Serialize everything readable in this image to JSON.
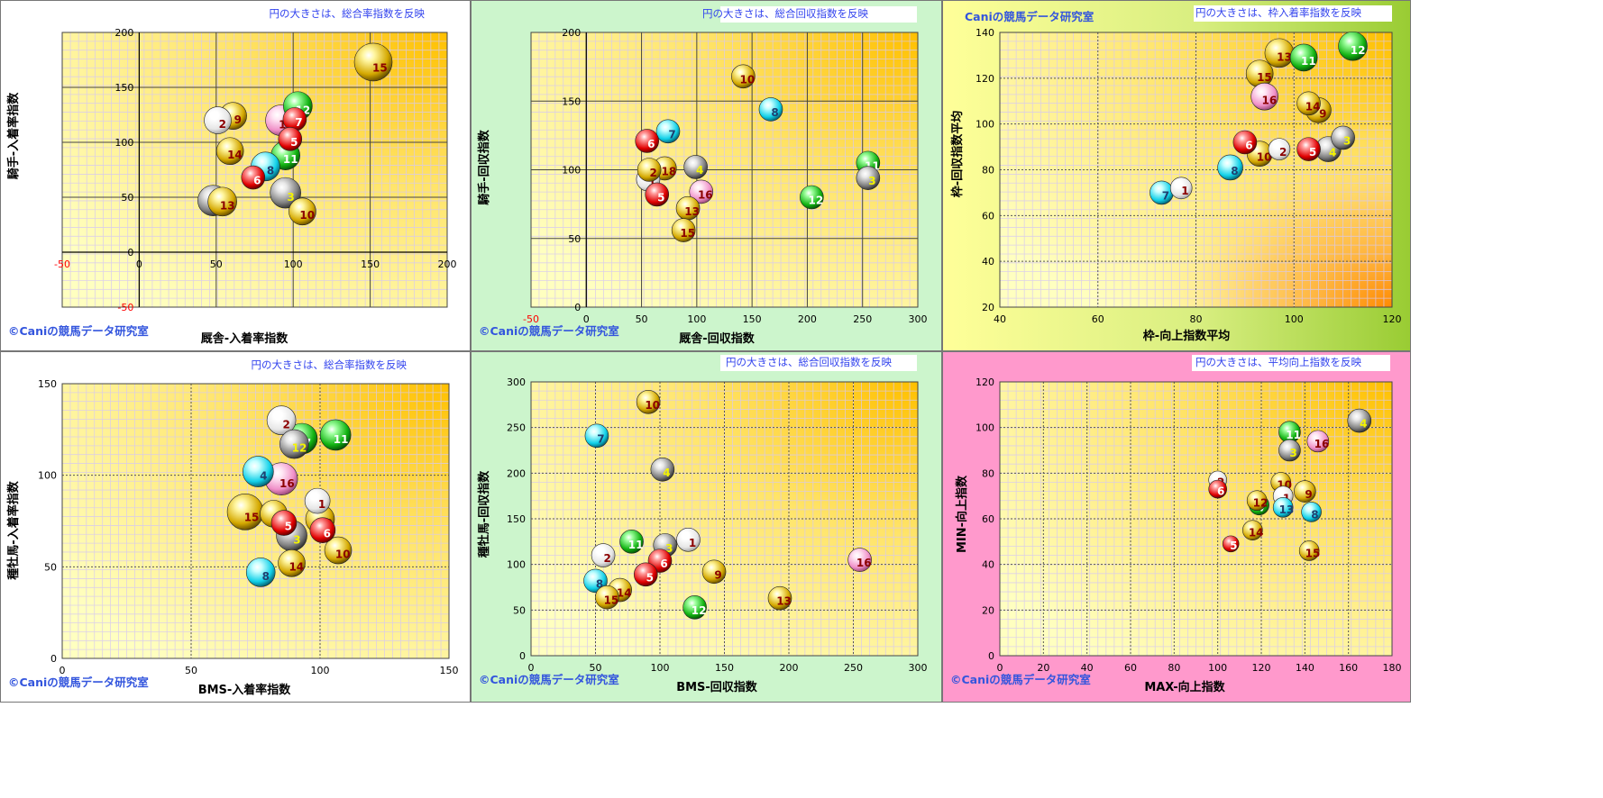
{
  "copyright": "©Caniの競馬データ研究室",
  "watermark": "Caniの競馬データ研究室",
  "chart_data": [
    {
      "type": "scatter",
      "note": "円の大きさは、総合率指数を反映",
      "xlabel": "厩舎-入着率指数",
      "ylabel": "騎手-入着率指数",
      "xlim": [
        -50,
        200
      ],
      "ylim": [
        -50,
        200
      ],
      "xticks": [
        -50,
        0,
        50,
        100,
        150,
        200
      ],
      "yticks": [
        -50,
        0,
        50,
        100,
        150,
        200
      ],
      "neg_red": true,
      "points": [
        {
          "label": "15",
          "x": 152,
          "y": 173,
          "color": "yellow",
          "r": 21
        },
        {
          "label": "12",
          "x": 103,
          "y": 133,
          "color": "green",
          "r": 16
        },
        {
          "label": "9",
          "x": 61,
          "y": 124,
          "color": "yellow",
          "r": 15
        },
        {
          "label": "2",
          "x": 51,
          "y": 120,
          "color": "white",
          "r": 15
        },
        {
          "label": "16",
          "x": 92,
          "y": 120,
          "color": "pink",
          "r": 17
        },
        {
          "label": "7",
          "x": 101,
          "y": 121,
          "color": "red",
          "r": 13
        },
        {
          "label": "5",
          "x": 98,
          "y": 103,
          "color": "red",
          "r": 13
        },
        {
          "label": "14",
          "x": 59,
          "y": 92,
          "color": "yellow",
          "r": 15
        },
        {
          "label": "11",
          "x": 95,
          "y": 88,
          "color": "green",
          "r": 16
        },
        {
          "label": "8",
          "x": 82,
          "y": 78,
          "color": "cyan",
          "r": 16
        },
        {
          "label": "6",
          "x": 74,
          "y": 68,
          "color": "red",
          "r": 13
        },
        {
          "label": "3",
          "x": 95,
          "y": 54,
          "color": "gray",
          "r": 17
        },
        {
          "label": "1",
          "x": 48,
          "y": 47,
          "color": "gray",
          "r": 17
        },
        {
          "label": "13",
          "x": 54,
          "y": 46,
          "color": "yellow",
          "r": 16
        },
        {
          "label": "10",
          "x": 106,
          "y": 37,
          "color": "yellow",
          "r": 15
        }
      ]
    },
    {
      "type": "scatter",
      "note": "円の大きさは、総合回収指数を反映",
      "xlabel": "厩舎-回収指数",
      "ylabel": "騎手-回収指数",
      "xlim": [
        -50,
        300
      ],
      "ylim": [
        0,
        200
      ],
      "xticks": [
        -50,
        0,
        50,
        100,
        150,
        200,
        250,
        300
      ],
      "yticks": [
        0,
        50,
        100,
        150,
        200
      ],
      "neg_red": true,
      "points": [
        {
          "label": "10",
          "x": 142,
          "y": 168,
          "color": "yellow",
          "r": 13
        },
        {
          "label": "8",
          "x": 167,
          "y": 144,
          "color": "cyan",
          "r": 13
        },
        {
          "label": "7",
          "x": 74,
          "y": 128,
          "color": "cyan",
          "r": 13
        },
        {
          "label": "6",
          "x": 55,
          "y": 121,
          "color": "red",
          "r": 13
        },
        {
          "label": "11",
          "x": 255,
          "y": 105,
          "color": "green",
          "r": 13
        },
        {
          "label": "4",
          "x": 99,
          "y": 102,
          "color": "gray",
          "r": 13
        },
        {
          "label": "18",
          "x": 71,
          "y": 101,
          "color": "yellow",
          "r": 13
        },
        {
          "label": "1",
          "x": 56,
          "y": 93,
          "color": "white",
          "r": 13
        },
        {
          "label": "2",
          "x": 57,
          "y": 100,
          "color": "yellow",
          "r": 13
        },
        {
          "label": "3",
          "x": 255,
          "y": 94,
          "color": "gray",
          "r": 13
        },
        {
          "label": "16",
          "x": 104,
          "y": 84,
          "color": "pink",
          "r": 13
        },
        {
          "label": "5",
          "x": 64,
          "y": 82,
          "color": "red",
          "r": 13
        },
        {
          "label": "12",
          "x": 204,
          "y": 80,
          "color": "green",
          "r": 13
        },
        {
          "label": "13",
          "x": 92,
          "y": 72,
          "color": "yellow",
          "r": 13
        },
        {
          "label": "15",
          "x": 88,
          "y": 56,
          "color": "yellow",
          "r": 13
        }
      ]
    },
    {
      "type": "scatter",
      "note": "円の大きさは、枠入着率指数を反映",
      "xlabel": "枠-向上指数平均",
      "ylabel": "枠-回収指数平均",
      "xlim": [
        40,
        120
      ],
      "ylim": [
        20,
        140
      ],
      "xticks": [
        40,
        60,
        80,
        100,
        120
      ],
      "yticks": [
        20,
        40,
        60,
        80,
        100,
        120,
        140
      ],
      "neg_red": false,
      "points": [
        {
          "label": "12",
          "x": 112,
          "y": 134,
          "color": "green",
          "r": 16
        },
        {
          "label": "13",
          "x": 97,
          "y": 131,
          "color": "yellow",
          "r": 16
        },
        {
          "label": "11",
          "x": 102,
          "y": 129,
          "color": "green",
          "r": 15
        },
        {
          "label": "15",
          "x": 93,
          "y": 122,
          "color": "yellow",
          "r": 15
        },
        {
          "label": "16",
          "x": 94,
          "y": 112,
          "color": "pink",
          "r": 15
        },
        {
          "label": "14",
          "x": 103,
          "y": 109,
          "color": "yellow",
          "r": 13
        },
        {
          "label": "9",
          "x": 105,
          "y": 106,
          "color": "yellow",
          "r": 14
        },
        {
          "label": "3",
          "x": 110,
          "y": 94,
          "color": "gray",
          "r": 13
        },
        {
          "label": "6",
          "x": 90,
          "y": 92,
          "color": "red",
          "r": 13
        },
        {
          "label": "2",
          "x": 97,
          "y": 89,
          "color": "white",
          "r": 12
        },
        {
          "label": "5",
          "x": 103,
          "y": 89,
          "color": "red",
          "r": 13
        },
        {
          "label": "4",
          "x": 107,
          "y": 89,
          "color": "gray",
          "r": 14
        },
        {
          "label": "10",
          "x": 93,
          "y": 87,
          "color": "yellow",
          "r": 14
        },
        {
          "label": "8",
          "x": 87,
          "y": 81,
          "color": "cyan",
          "r": 14
        },
        {
          "label": "1",
          "x": 77,
          "y": 72,
          "color": "white",
          "r": 12
        },
        {
          "label": "7",
          "x": 73,
          "y": 70,
          "color": "cyan",
          "r": 13
        }
      ]
    },
    {
      "type": "scatter",
      "note": "円の大きさは、総合率指数を反映",
      "xlabel": "BMS-入着率指数",
      "ylabel": "種牡馬-入着率指数",
      "xlim": [
        0,
        150
      ],
      "ylim": [
        0,
        150
      ],
      "xticks": [
        0,
        50,
        100,
        150
      ],
      "yticks": [
        0,
        50,
        100,
        150
      ],
      "neg_red": false,
      "points": [
        {
          "label": "2",
          "x": 85,
          "y": 130,
          "color": "white",
          "r": 16
        },
        {
          "label": "12",
          "x": 90,
          "y": 117,
          "color": "gray",
          "r": 16
        },
        {
          "label": "7",
          "x": 93,
          "y": 120,
          "color": "green",
          "r": 17
        },
        {
          "label": "11",
          "x": 106,
          "y": 122,
          "color": "green",
          "r": 17
        },
        {
          "label": "4",
          "x": 76,
          "y": 102,
          "color": "cyan",
          "r": 17
        },
        {
          "label": "16",
          "x": 85,
          "y": 98,
          "color": "pink",
          "r": 18
        },
        {
          "label": "1",
          "x": 99,
          "y": 86,
          "color": "white",
          "r": 14
        },
        {
          "label": "15",
          "x": 71,
          "y": 80,
          "color": "yellow",
          "r": 20
        },
        {
          "label": "9",
          "x": 82,
          "y": 79,
          "color": "yellow",
          "r": 15
        },
        {
          "label": "5",
          "x": 86,
          "y": 74,
          "color": "red",
          "r": 14
        },
        {
          "label": "13",
          "x": 100,
          "y": 76,
          "color": "yellow",
          "r": 16
        },
        {
          "label": "6",
          "x": 101,
          "y": 70,
          "color": "red",
          "r": 14
        },
        {
          "label": "3",
          "x": 89,
          "y": 67,
          "color": "gray",
          "r": 17
        },
        {
          "label": "10",
          "x": 107,
          "y": 59,
          "color": "yellow",
          "r": 15
        },
        {
          "label": "14",
          "x": 89,
          "y": 52,
          "color": "yellow",
          "r": 15
        },
        {
          "label": "8",
          "x": 77,
          "y": 47,
          "color": "cyan",
          "r": 16
        }
      ]
    },
    {
      "type": "scatter",
      "note": "円の大きさは、総合回収指数を反映",
      "xlabel": "BMS-回収指数",
      "ylabel": "種牡馬-回収指数",
      "xlim": [
        0,
        300
      ],
      "ylim": [
        0,
        300
      ],
      "xticks": [
        0,
        50,
        100,
        150,
        200,
        250,
        300
      ],
      "yticks": [
        0,
        50,
        100,
        150,
        200,
        250,
        300
      ],
      "neg_red": false,
      "points": [
        {
          "label": "10",
          "x": 91,
          "y": 278,
          "color": "yellow",
          "r": 13
        },
        {
          "label": "7",
          "x": 51,
          "y": 241,
          "color": "cyan",
          "r": 13
        },
        {
          "label": "4",
          "x": 102,
          "y": 204,
          "color": "gray",
          "r": 13
        },
        {
          "label": "1",
          "x": 122,
          "y": 127,
          "color": "white",
          "r": 13
        },
        {
          "label": "11",
          "x": 78,
          "y": 125,
          "color": "green",
          "r": 13
        },
        {
          "label": "3",
          "x": 104,
          "y": 121,
          "color": "gray",
          "r": 13
        },
        {
          "label": "2",
          "x": 56,
          "y": 110,
          "color": "white",
          "r": 13
        },
        {
          "label": "6",
          "x": 100,
          "y": 104,
          "color": "red",
          "r": 13
        },
        {
          "label": "16",
          "x": 255,
          "y": 105,
          "color": "pink",
          "r": 13
        },
        {
          "label": "9",
          "x": 142,
          "y": 92,
          "color": "yellow",
          "r": 13
        },
        {
          "label": "5",
          "x": 89,
          "y": 89,
          "color": "red",
          "r": 13
        },
        {
          "label": "8",
          "x": 50,
          "y": 82,
          "color": "cyan",
          "r": 13
        },
        {
          "label": "14",
          "x": 69,
          "y": 72,
          "color": "yellow",
          "r": 13
        },
        {
          "label": "15",
          "x": 59,
          "y": 64,
          "color": "yellow",
          "r": 13
        },
        {
          "label": "13",
          "x": 193,
          "y": 63,
          "color": "yellow",
          "r": 13
        },
        {
          "label": "12",
          "x": 127,
          "y": 53,
          "color": "green",
          "r": 13
        }
      ]
    },
    {
      "type": "scatter",
      "note": "円の大きさは、平均向上指数を反映",
      "xlabel": "MAX-向上指数",
      "ylabel": "MIN-向上指数",
      "xlim": [
        0,
        180
      ],
      "ylim": [
        0,
        120
      ],
      "xticks": [
        0,
        20,
        40,
        60,
        80,
        100,
        120,
        140,
        160,
        180
      ],
      "yticks": [
        0,
        20,
        40,
        60,
        80,
        100,
        120
      ],
      "neg_red": false,
      "points": [
        {
          "label": "4",
          "x": 165,
          "y": 103,
          "color": "gray",
          "r": 13
        },
        {
          "label": "11",
          "x": 133,
          "y": 98,
          "color": "green",
          "r": 12
        },
        {
          "label": "16",
          "x": 146,
          "y": 94,
          "color": "pink",
          "r": 12
        },
        {
          "label": "3",
          "x": 133,
          "y": 90,
          "color": "gray",
          "r": 12
        },
        {
          "label": "2",
          "x": 100,
          "y": 77,
          "color": "white",
          "r": 10
        },
        {
          "label": "10",
          "x": 129,
          "y": 76,
          "color": "yellow",
          "r": 11
        },
        {
          "label": "6",
          "x": 100,
          "y": 73,
          "color": "red",
          "r": 10
        },
        {
          "label": "9",
          "x": 140,
          "y": 72,
          "color": "yellow",
          "r": 12
        },
        {
          "label": "1",
          "x": 130,
          "y": 70,
          "color": "white",
          "r": 11
        },
        {
          "label": "7",
          "x": 119,
          "y": 66,
          "color": "green",
          "r": 11
        },
        {
          "label": "12",
          "x": 118,
          "y": 68,
          "color": "yellow",
          "r": 11
        },
        {
          "label": "13",
          "x": 130,
          "y": 65,
          "color": "cyan",
          "r": 11
        },
        {
          "label": "8",
          "x": 143,
          "y": 63,
          "color": "cyan",
          "r": 11
        },
        {
          "label": "14",
          "x": 116,
          "y": 55,
          "color": "yellow",
          "r": 11
        },
        {
          "label": "5",
          "x": 106,
          "y": 49,
          "color": "red",
          "r": 9
        },
        {
          "label": "15",
          "x": 142,
          "y": 46,
          "color": "yellow",
          "r": 11
        }
      ]
    }
  ]
}
